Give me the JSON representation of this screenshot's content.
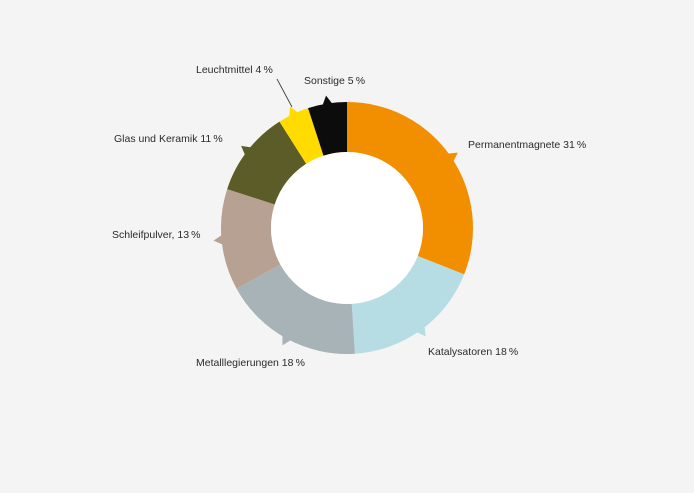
{
  "chart_data": {
    "type": "pie",
    "variant": "donut",
    "start": "top (12 o'clock), clockwise",
    "slices": [
      {
        "key": "permanentmagnete",
        "label": "Permanentmagnete 31 %",
        "value": 31,
        "color": "#f18f00"
      },
      {
        "key": "katalysatoren",
        "label": "Katalysatoren 18 %",
        "value": 18,
        "color": "#b6dde3"
      },
      {
        "key": "metalllegierungen",
        "label": "Metalllegierungen 18 %",
        "value": 18,
        "color": "#a8b3b8"
      },
      {
        "key": "schleifpulver",
        "label": "Schleifpulver, 13 %",
        "value": 13,
        "color": "#b7a193"
      },
      {
        "key": "glas-und-keramik",
        "label": "Glas und Keramik 11 %",
        "value": 11,
        "color": "#5b5c27"
      },
      {
        "key": "leuchtmittel",
        "label": "Leuchtmittel 4 %",
        "value": 4,
        "color": "#ffdb00"
      },
      {
        "key": "sonstige",
        "label": "Sonstige 5 %",
        "value": 5,
        "color": "#0c0c0c"
      }
    ],
    "background": "#f4f4f4"
  }
}
